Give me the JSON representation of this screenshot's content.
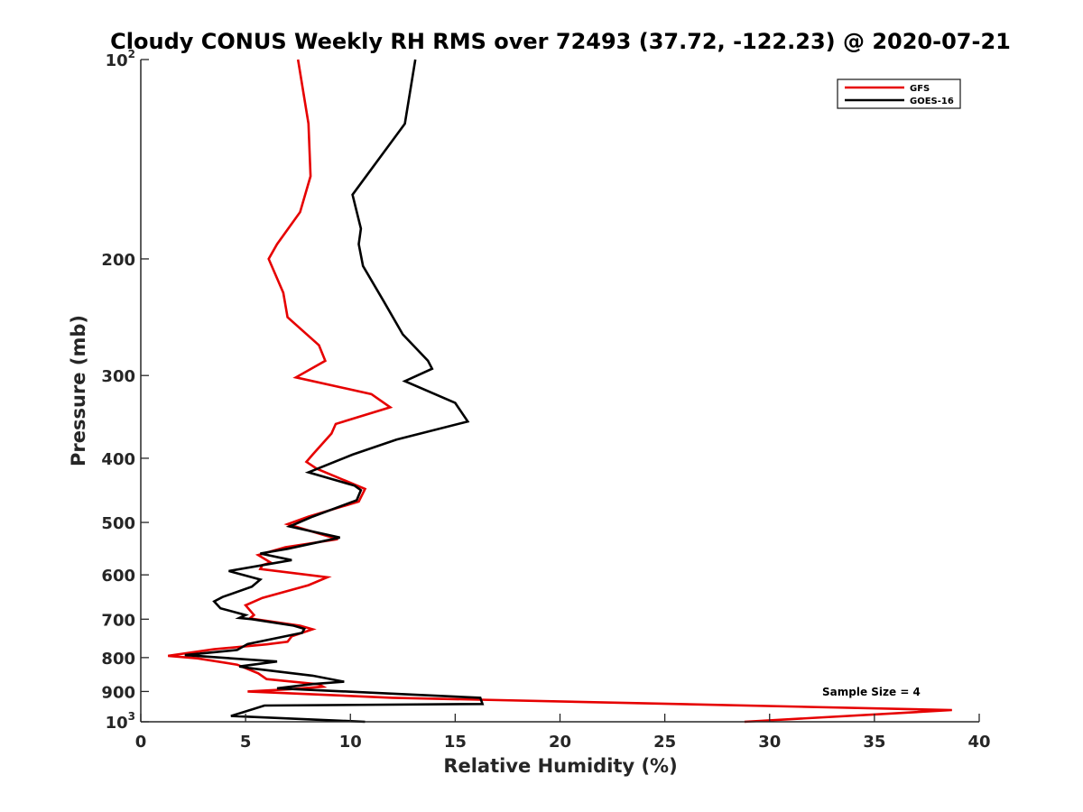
{
  "chart_data": {
    "type": "line",
    "title": "Cloudy CONUS Weekly RH RMS over 72493 (37.72, -122.23) @ 2020-07-21",
    "xlabel": "Relative Humidity (%)",
    "ylabel": "Pressure (mb)",
    "xlim": [
      0,
      40
    ],
    "ylim": [
      100,
      1000
    ],
    "y_scale": "log",
    "y_reversed": true,
    "x_ticks": [
      "0",
      "5",
      "10",
      "15",
      "20",
      "25",
      "30",
      "35",
      "40"
    ],
    "y_ticks": [
      {
        "value": 100,
        "label": "10",
        "exp": "2"
      },
      {
        "value": 200,
        "label": "200",
        "exp": ""
      },
      {
        "value": 300,
        "label": "300",
        "exp": ""
      },
      {
        "value": 400,
        "label": "400",
        "exp": ""
      },
      {
        "value": 500,
        "label": "500",
        "exp": ""
      },
      {
        "value": 600,
        "label": "600",
        "exp": ""
      },
      {
        "value": 700,
        "label": "700",
        "exp": ""
      },
      {
        "value": 800,
        "label": "800",
        "exp": ""
      },
      {
        "value": 900,
        "label": "900",
        "exp": ""
      },
      {
        "value": 1000,
        "label": "10",
        "exp": "3"
      }
    ],
    "legend_position": "top-right",
    "annotation": "Sample Size = 4",
    "series": [
      {
        "name": "GFS",
        "color": "#e60000",
        "points": [
          [
            7.5,
            100
          ],
          [
            8.0,
            125
          ],
          [
            8.1,
            150
          ],
          [
            7.6,
            170
          ],
          [
            6.5,
            190
          ],
          [
            6.1,
            200
          ],
          [
            6.8,
            225
          ],
          [
            7.0,
            245
          ],
          [
            8.5,
            270
          ],
          [
            8.8,
            285
          ],
          [
            7.4,
            302
          ],
          [
            11.0,
            320
          ],
          [
            11.9,
            335
          ],
          [
            9.3,
            355
          ],
          [
            9.1,
            367
          ],
          [
            8.2,
            395
          ],
          [
            7.9,
            405
          ],
          [
            8.4,
            415
          ],
          [
            10.7,
            445
          ],
          [
            10.4,
            465
          ],
          [
            8.0,
            490
          ],
          [
            7.0,
            503
          ],
          [
            9.4,
            530
          ],
          [
            6.9,
            545
          ],
          [
            5.6,
            560
          ],
          [
            6.2,
            575
          ],
          [
            5.8,
            580
          ],
          [
            5.7,
            588
          ],
          [
            8.9,
            605
          ],
          [
            8.0,
            622
          ],
          [
            5.8,
            650
          ],
          [
            5.0,
            667
          ],
          [
            5.4,
            690
          ],
          [
            5.2,
            698
          ],
          [
            7.6,
            716
          ],
          [
            8.2,
            725
          ],
          [
            7.2,
            743
          ],
          [
            7.0,
            757
          ],
          [
            6.0,
            764
          ],
          [
            3.5,
            777
          ],
          [
            1.3,
            795
          ],
          [
            2.7,
            802
          ],
          [
            4.6,
            820
          ],
          [
            5.6,
            845
          ],
          [
            6.0,
            862
          ],
          [
            8.5,
            878
          ],
          [
            8.7,
            885
          ],
          [
            7.1,
            893
          ],
          [
            5.1,
            900
          ],
          [
            12.0,
            920
          ],
          [
            38.7,
            960
          ],
          [
            28.8,
            1000
          ]
        ]
      },
      {
        "name": "GOES-16",
        "color": "#000000",
        "points": [
          [
            13.1,
            100
          ],
          [
            12.6,
            125
          ],
          [
            10.1,
            160
          ],
          [
            10.5,
            180
          ],
          [
            10.4,
            190
          ],
          [
            10.6,
            205
          ],
          [
            11.6,
            232
          ],
          [
            12.5,
            260
          ],
          [
            13.7,
            285
          ],
          [
            13.9,
            293
          ],
          [
            12.6,
            306
          ],
          [
            15.0,
            330
          ],
          [
            15.6,
            352
          ],
          [
            12.2,
            375
          ],
          [
            10.1,
            395
          ],
          [
            8.0,
            420
          ],
          [
            10.2,
            440
          ],
          [
            10.5,
            447
          ],
          [
            10.3,
            463
          ],
          [
            8.2,
            490
          ],
          [
            7.1,
            507
          ],
          [
            9.5,
            527
          ],
          [
            7.0,
            548
          ],
          [
            5.7,
            557
          ],
          [
            7.2,
            570
          ],
          [
            4.2,
            592
          ],
          [
            5.7,
            610
          ],
          [
            5.3,
            625
          ],
          [
            3.9,
            648
          ],
          [
            3.5,
            658
          ],
          [
            3.8,
            674
          ],
          [
            5.0,
            690
          ],
          [
            4.7,
            697
          ],
          [
            5.3,
            700
          ],
          [
            7.3,
            716
          ],
          [
            7.8,
            724
          ],
          [
            7.7,
            734
          ],
          [
            5.1,
            763
          ],
          [
            4.6,
            779
          ],
          [
            2.1,
            793
          ],
          [
            6.5,
            811
          ],
          [
            4.7,
            825
          ],
          [
            5.2,
            830
          ],
          [
            8.2,
            852
          ],
          [
            9.7,
            870
          ],
          [
            8.2,
            877
          ],
          [
            6.5,
            890
          ],
          [
            16.2,
            920
          ],
          [
            16.3,
            940
          ],
          [
            5.9,
            945
          ],
          [
            4.3,
            980
          ],
          [
            10.7,
            1000
          ]
        ]
      }
    ]
  }
}
